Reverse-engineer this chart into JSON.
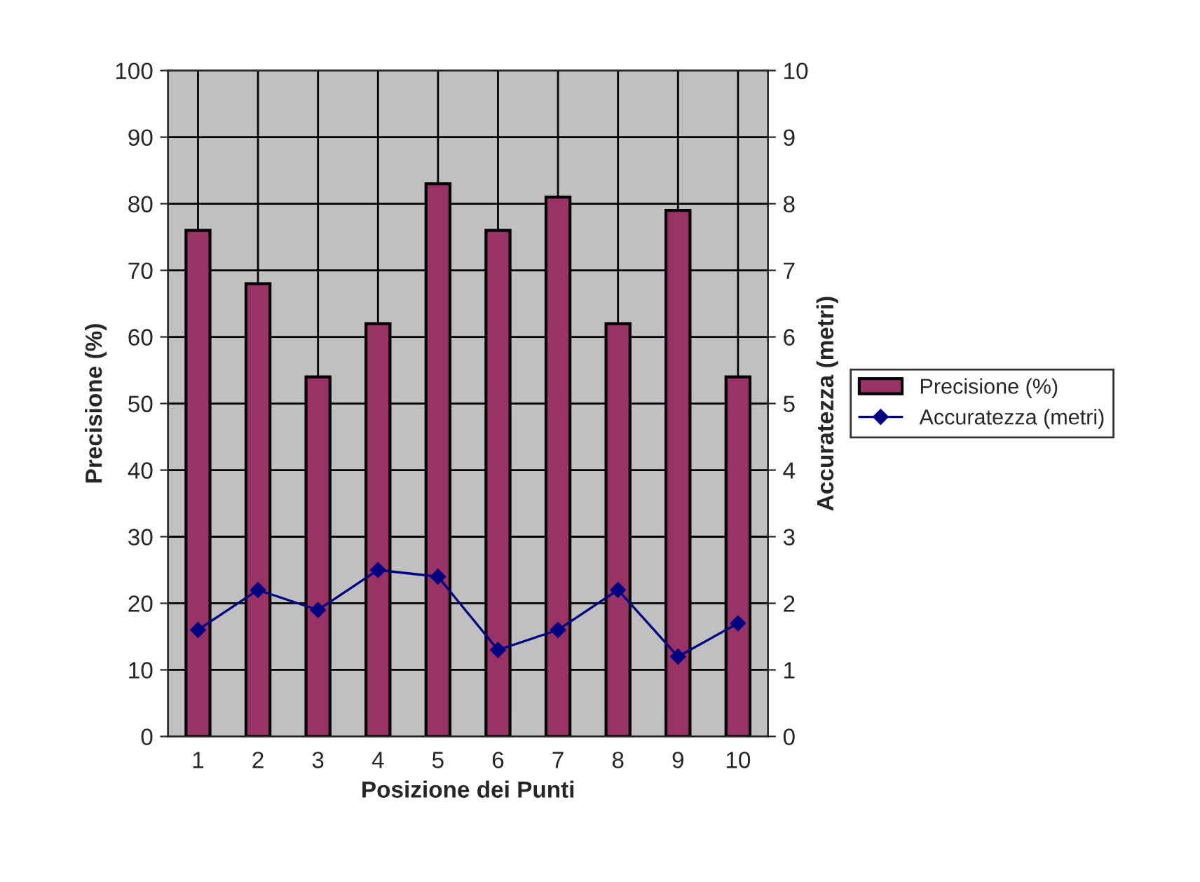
{
  "chart_data": {
    "type": "bar",
    "xlabel": "Posizione dei Punti",
    "ylabel": "Precisione (%)",
    "y2label": "Accuratezza (metri)",
    "categories": [
      "1",
      "2",
      "3",
      "4",
      "5",
      "6",
      "7",
      "8",
      "9",
      "10"
    ],
    "series": [
      {
        "name": "Precisione (%)",
        "color": "#993366",
        "values": [
          76,
          68,
          54,
          62,
          83,
          76,
          81,
          62,
          79,
          54
        ]
      },
      {
        "name": "Accuratezza (metri)",
        "type": "line",
        "axis": "y2",
        "color": "#000080",
        "marker": "diamond",
        "values": [
          1.6,
          2.2,
          1.9,
          2.5,
          2.4,
          1.3,
          1.6,
          2.2,
          1.2,
          1.7
        ]
      }
    ],
    "ylim": [
      0,
      100
    ],
    "yticks": [
      0,
      10,
      20,
      30,
      40,
      50,
      60,
      70,
      80,
      90,
      100
    ],
    "y2lim": [
      0,
      10
    ],
    "y2ticks": [
      0,
      1,
      2,
      3,
      4,
      5,
      6,
      7,
      8,
      9,
      10
    ],
    "grid": true,
    "legend": "right"
  }
}
